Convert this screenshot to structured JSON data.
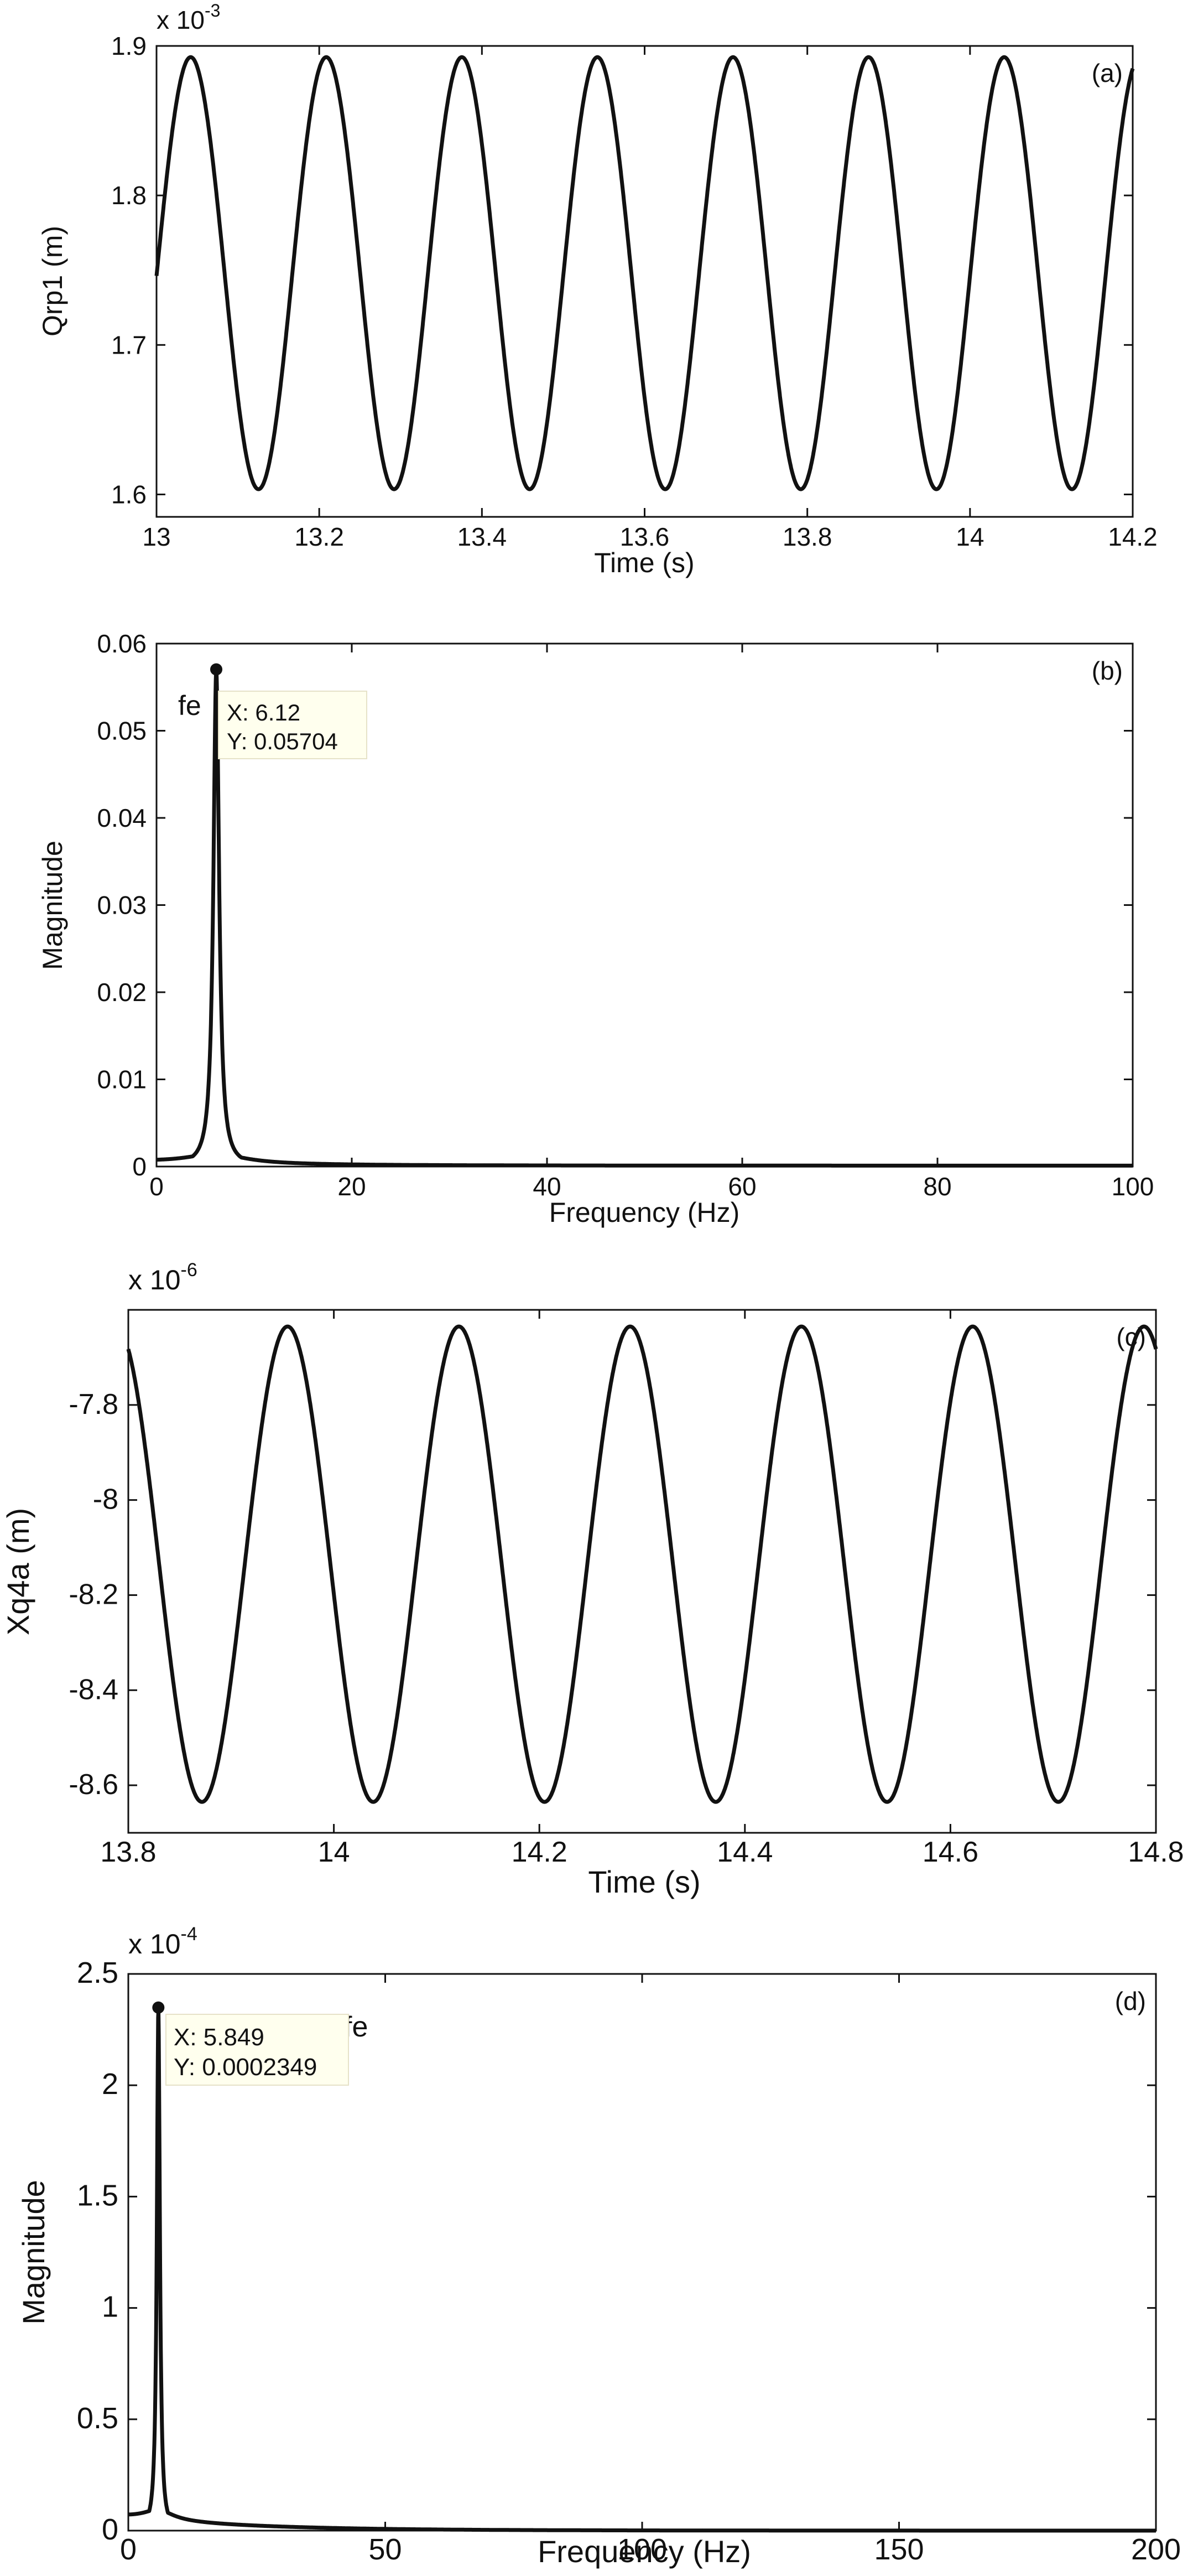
{
  "chart_data": [
    {
      "type": "line",
      "panel_label": "(a)",
      "xlabel": "Time (s)",
      "ylabel": "Qrp1 (m)",
      "exponent": {
        "base": "x 10",
        "power": "-3"
      },
      "xlim": [
        13,
        14.2
      ],
      "ylim": [
        1.585,
        1.9
      ],
      "xticks": [
        13,
        13.2,
        13.4,
        13.6,
        13.8,
        14,
        14.2
      ],
      "xtick_labels": [
        "13",
        "13.2",
        "13.4",
        "13.6",
        "13.8",
        "14",
        "14.2"
      ],
      "yticks": [
        1.6,
        1.7,
        1.8,
        1.9
      ],
      "ytick_labels": [
        "1.6",
        "1.7",
        "1.8",
        "1.9"
      ],
      "signal": {
        "kind": "sine",
        "min": 1.6035,
        "max": 1.8925,
        "frequency_hz": 6.0,
        "first_peak_x": 13.042
      }
    },
    {
      "type": "line",
      "panel_label": "(b)",
      "xlabel": "Frequency (Hz)",
      "ylabel": "Magnitude",
      "xlim": [
        0,
        100
      ],
      "ylim": [
        0,
        0.06
      ],
      "xticks": [
        0,
        20,
        40,
        60,
        80,
        100
      ],
      "xtick_labels": [
        "0",
        "20",
        "40",
        "60",
        "80",
        "100"
      ],
      "yticks": [
        0,
        0.01,
        0.02,
        0.03,
        0.04,
        0.05,
        0.06
      ],
      "ytick_labels": [
        "0",
        "0.01",
        "0.02",
        "0.03",
        "0.04",
        "0.05",
        "0.06"
      ],
      "signal": {
        "kind": "spectrum",
        "peak_x": 6.12,
        "peak_y": 0.05704,
        "dc": 0.0005,
        "tail_end": 0.0001
      },
      "annotation": {
        "name": "fe",
        "x_text": "X: 6.12",
        "y_text": "Y: 0.05704"
      }
    },
    {
      "type": "line",
      "panel_label": "(c)",
      "xlabel": "Time (s)",
      "ylabel": "Xq4a (m)",
      "exponent": {
        "base": "x 10",
        "power": "-6"
      },
      "xlim": [
        13.8,
        14.8
      ],
      "ylim": [
        -8.7,
        -7.6
      ],
      "xticks": [
        13.8,
        14,
        14.2,
        14.4,
        14.6,
        14.8
      ],
      "xtick_labels": [
        "13.8",
        "14",
        "14.2",
        "14.4",
        "14.6",
        "14.8"
      ],
      "yticks": [
        -8.6,
        -8.4,
        -8.2,
        -8,
        -7.8
      ],
      "ytick_labels": [
        "-8.6",
        "-8.4",
        "-8.2",
        "-8",
        "-7.8"
      ],
      "signal": {
        "kind": "sine",
        "min": -8.635,
        "max": -7.635,
        "frequency_hz": 6.0,
        "first_peak_x": 13.955
      }
    },
    {
      "type": "line",
      "panel_label": "(d)",
      "xlabel": "Frequency (Hz)",
      "ylabel": "Magnitude",
      "exponent": {
        "base": "x 10",
        "power": "-4"
      },
      "xlim": [
        0,
        200
      ],
      "ylim": [
        0,
        2.5
      ],
      "xticks": [
        0,
        50,
        100,
        150,
        200
      ],
      "xtick_labels": [
        "0",
        "50",
        "100",
        "150",
        "200"
      ],
      "yticks": [
        0,
        0.5,
        1,
        1.5,
        2,
        2.5
      ],
      "ytick_labels": [
        "0",
        "0.5",
        "1",
        "1.5",
        "2",
        "2.5"
      ],
      "signal": {
        "kind": "spectrum",
        "peak_x": 5.849,
        "peak_y": 2.349,
        "dc": 0.06,
        "tail_end": 0.0
      },
      "annotation": {
        "name": "fe",
        "x_text": "X: 5.849",
        "y_text": "Y: 0.0002349"
      }
    }
  ]
}
